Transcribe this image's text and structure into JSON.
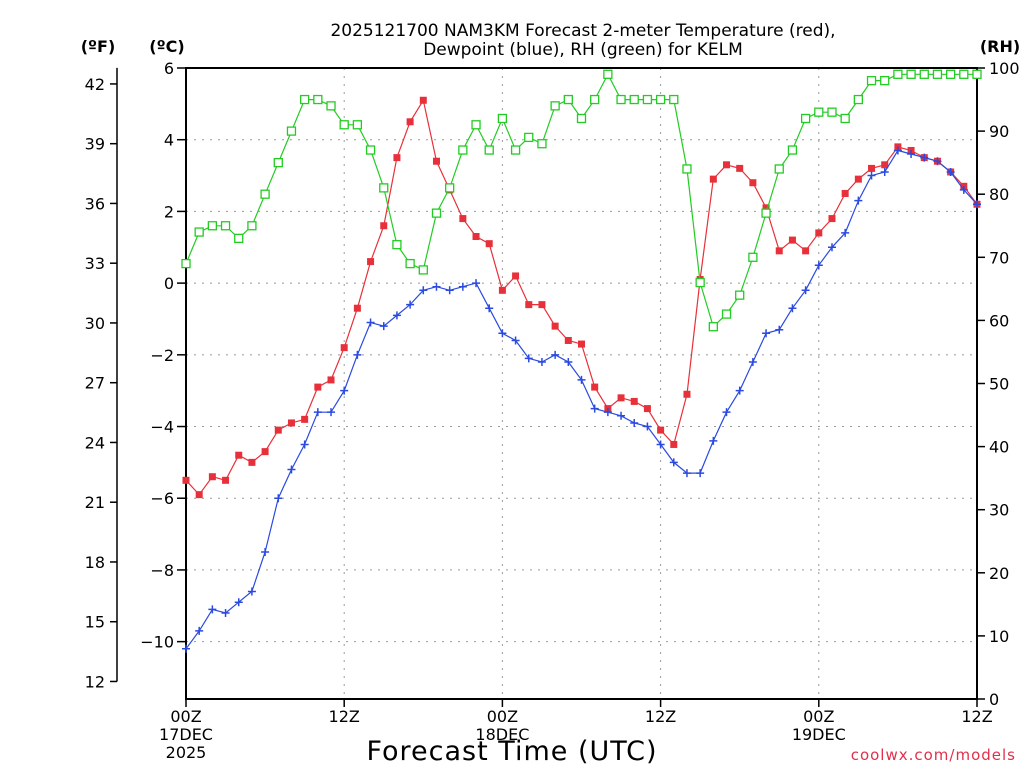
{
  "chart_data": {
    "type": "line",
    "title_line1": "2025121700 NAM3KM Forecast 2-meter Temperature (red),",
    "title_line2": "Dewpoint (blue), RH (green) for KELM",
    "xlabel": "Forecast Time (UTC)",
    "credit": "coolwx.com/models",
    "units": {
      "fahrenheit": "(ºF)",
      "celsius": "(ºC)",
      "rh": "(RH)"
    },
    "x_range_hours": [
      0,
      60
    ],
    "x_ticks": [
      {
        "hour": 0,
        "label": "00Z",
        "date": "17DEC",
        "year": "2025"
      },
      {
        "hour": 12,
        "label": "12Z",
        "date": "",
        "year": ""
      },
      {
        "hour": 24,
        "label": "00Z",
        "date": "18DEC",
        "year": ""
      },
      {
        "hour": 36,
        "label": "12Z",
        "date": "",
        "year": ""
      },
      {
        "hour": 48,
        "label": "00Z",
        "date": "19DEC",
        "year": ""
      },
      {
        "hour": 60,
        "label": "12Z",
        "date": "",
        "year": ""
      }
    ],
    "celsius_range": [
      -11.6,
      6
    ],
    "celsius_ticks": [
      {
        "value": 6,
        "label": "6"
      },
      {
        "value": 4,
        "label": "4"
      },
      {
        "value": 2,
        "label": "2"
      },
      {
        "value": 0,
        "label": "0"
      },
      {
        "value": -2,
        "label": "−2"
      },
      {
        "value": -4,
        "label": "−4"
      },
      {
        "value": -6,
        "label": "−6"
      },
      {
        "value": -8,
        "label": "−8"
      },
      {
        "value": -10,
        "label": "−10"
      }
    ],
    "fahrenheit_ticks": [
      {
        "value": 42,
        "label": "42"
      },
      {
        "value": 39,
        "label": "39"
      },
      {
        "value": 36,
        "label": "36"
      },
      {
        "value": 33,
        "label": "33"
      },
      {
        "value": 30,
        "label": "30"
      },
      {
        "value": 27,
        "label": "27"
      },
      {
        "value": 24,
        "label": "24"
      },
      {
        "value": 21,
        "label": "21"
      },
      {
        "value": 18,
        "label": "18"
      },
      {
        "value": 15,
        "label": "15"
      },
      {
        "value": 12,
        "label": "12"
      }
    ],
    "rh_range": [
      0,
      100
    ],
    "rh_ticks": [
      {
        "value": 100,
        "label": "100"
      },
      {
        "value": 90,
        "label": "90"
      },
      {
        "value": 80,
        "label": "80"
      },
      {
        "value": 70,
        "label": "70"
      },
      {
        "value": 60,
        "label": "60"
      },
      {
        "value": 50,
        "label": "50"
      },
      {
        "value": 40,
        "label": "40"
      },
      {
        "value": 30,
        "label": "30"
      },
      {
        "value": 20,
        "label": "20"
      },
      {
        "value": 10,
        "label": "10"
      },
      {
        "value": 0,
        "label": "0"
      }
    ],
    "hours": [
      0,
      1,
      2,
      3,
      4,
      5,
      6,
      7,
      8,
      9,
      10,
      11,
      12,
      13,
      14,
      15,
      16,
      17,
      18,
      19,
      20,
      21,
      22,
      23,
      24,
      25,
      26,
      27,
      28,
      29,
      30,
      31,
      32,
      33,
      34,
      35,
      36,
      37,
      38,
      39,
      40,
      41,
      42,
      43,
      44,
      45,
      46,
      47,
      48,
      49,
      50,
      51,
      52,
      53,
      54,
      55,
      56,
      57,
      58,
      59,
      60
    ],
    "series": [
      {
        "name": "2-meter Temperature",
        "unit": "C",
        "color": "#e8303a",
        "marker": "filled-square",
        "values": [
          -5.5,
          -5.9,
          -5.4,
          -5.5,
          -4.8,
          -5.0,
          -4.7,
          -4.1,
          -3.9,
          -3.8,
          -2.9,
          -2.7,
          -1.8,
          -0.7,
          0.6,
          1.6,
          3.5,
          4.5,
          5.1,
          3.4,
          2.6,
          1.8,
          1.3,
          1.1,
          -0.2,
          0.2,
          -0.6,
          -0.6,
          -1.2,
          -1.6,
          -1.7,
          -2.9,
          -3.5,
          -3.2,
          -3.3,
          -3.5,
          -4.1,
          -4.5,
          -3.1,
          0.1,
          2.9,
          3.3,
          3.2,
          2.8,
          2.1,
          0.9,
          1.2,
          0.9,
          1.4,
          1.8,
          2.5,
          2.9,
          3.2,
          3.3,
          3.8,
          3.7,
          3.5,
          3.4,
          3.1,
          2.7,
          2.2
        ]
      },
      {
        "name": "Dewpoint",
        "unit": "C",
        "color": "#2a4ae0",
        "marker": "plus",
        "values": [
          -10.2,
          -9.7,
          -9.1,
          -9.2,
          -8.9,
          -8.6,
          -7.5,
          -6.0,
          -5.2,
          -4.5,
          -3.6,
          -3.6,
          -3.0,
          -2.0,
          -1.1,
          -1.2,
          -0.9,
          -0.6,
          -0.2,
          -0.1,
          -0.2,
          -0.1,
          0.0,
          -0.7,
          -1.4,
          -1.6,
          -2.1,
          -2.2,
          -2.0,
          -2.2,
          -2.7,
          -3.5,
          -3.6,
          -3.7,
          -3.9,
          -4.0,
          -4.5,
          -5.0,
          -5.3,
          -5.3,
          -4.4,
          -3.6,
          -3.0,
          -2.2,
          -1.4,
          -1.3,
          -0.7,
          -0.2,
          0.5,
          1.0,
          1.4,
          2.3,
          3.0,
          3.1,
          3.7,
          3.6,
          3.5,
          3.4,
          3.1,
          2.6,
          2.2
        ]
      },
      {
        "name": "Relative Humidity",
        "unit": "%",
        "color": "#22cc22",
        "marker": "open-square",
        "values": [
          69,
          74,
          75,
          75,
          73,
          75,
          80,
          85,
          90,
          95,
          95,
          94,
          91,
          91,
          87,
          81,
          72,
          69,
          68,
          77,
          81,
          87,
          91,
          87,
          92,
          87,
          89,
          88,
          94,
          95,
          92,
          95,
          99,
          95,
          95,
          95,
          95,
          95,
          84,
          66,
          59,
          61,
          64,
          70,
          77,
          84,
          87,
          92,
          93,
          93,
          92,
          95,
          98,
          98,
          99,
          99,
          99,
          99,
          99,
          99,
          99
        ]
      }
    ]
  }
}
